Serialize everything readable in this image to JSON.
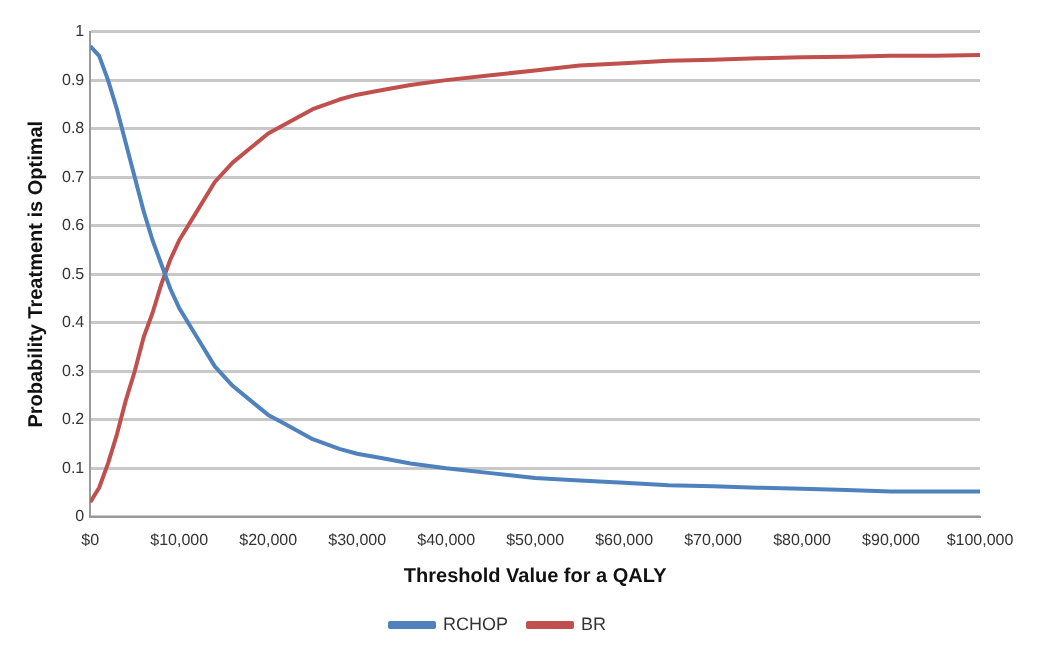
{
  "chart_data": {
    "type": "line",
    "xlabel": "Threshold Value for a QALY",
    "ylabel": "Probability Treatment is Optimal",
    "x": [
      0,
      1000,
      2000,
      3000,
      4000,
      5000,
      6000,
      7000,
      8000,
      9000,
      10000,
      12000,
      14000,
      16000,
      18000,
      20000,
      22000,
      25000,
      28000,
      30000,
      33000,
      36000,
      40000,
      45000,
      50000,
      55000,
      60000,
      65000,
      70000,
      75000,
      80000,
      85000,
      90000,
      95000,
      100000
    ],
    "series": [
      {
        "name": "RCHOP",
        "color": "#4f81bd",
        "values": [
          0.97,
          0.95,
          0.9,
          0.84,
          0.77,
          0.7,
          0.63,
          0.57,
          0.52,
          0.47,
          0.43,
          0.37,
          0.31,
          0.27,
          0.24,
          0.21,
          0.19,
          0.16,
          0.14,
          0.13,
          0.12,
          0.11,
          0.1,
          0.09,
          0.08,
          0.075,
          0.07,
          0.065,
          0.063,
          0.06,
          0.058,
          0.055,
          0.052,
          0.052,
          0.052
        ]
      },
      {
        "name": "BR",
        "color": "#c0504d",
        "values": [
          0.03,
          0.06,
          0.11,
          0.17,
          0.24,
          0.3,
          0.37,
          0.42,
          0.48,
          0.53,
          0.57,
          0.63,
          0.69,
          0.73,
          0.76,
          0.79,
          0.81,
          0.84,
          0.86,
          0.87,
          0.88,
          0.89,
          0.9,
          0.91,
          0.92,
          0.93,
          0.935,
          0.94,
          0.942,
          0.945,
          0.947,
          0.948,
          0.95,
          0.95,
          0.952
        ]
      }
    ],
    "xlim": [
      0,
      100000
    ],
    "xticks": [
      {
        "value": 0,
        "label": "$0"
      },
      {
        "value": 10000,
        "label": "$10,000"
      },
      {
        "value": 20000,
        "label": "$20,000"
      },
      {
        "value": 30000,
        "label": "$30,000"
      },
      {
        "value": 40000,
        "label": "$40,000"
      },
      {
        "value": 50000,
        "label": "$50,000"
      },
      {
        "value": 60000,
        "label": "$60,000"
      },
      {
        "value": 70000,
        "label": "$70,000"
      },
      {
        "value": 80000,
        "label": "$80,000"
      },
      {
        "value": 90000,
        "label": "$90,000"
      },
      {
        "value": 100000,
        "label": "$100,000"
      }
    ],
    "ylim": [
      0,
      1
    ],
    "yticks": [
      0,
      0.1,
      0.2,
      0.3,
      0.4,
      0.5,
      0.6,
      0.7,
      0.8,
      0.9,
      1
    ],
    "grid": "y",
    "legend": "bottom",
    "marker": "none",
    "line_style": "solid"
  }
}
